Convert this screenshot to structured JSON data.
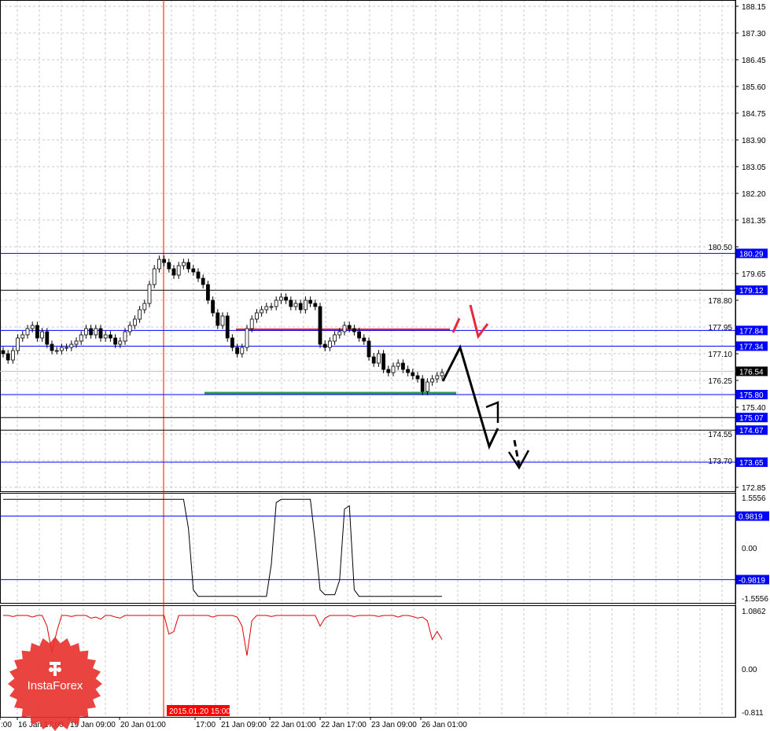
{
  "chart_data": {
    "type": "candlestick",
    "price_axis": {
      "ylim": [
        172.85,
        188.15
      ],
      "ticks": [
        "188.15",
        "187.30",
        "186.45",
        "185.60",
        "184.75",
        "183.90",
        "183.05",
        "182.20",
        "181.35",
        "180.50",
        "179.65",
        "178.80",
        "177.95",
        "177.10",
        "176.25",
        "175.40",
        "174.55",
        "173.70",
        "172.85"
      ]
    },
    "current_price": {
      "value": "176.54",
      "color": "#000000"
    },
    "levels": [
      {
        "label": "180.29",
        "value": 180.29,
        "color": "#0000ff"
      },
      {
        "label": "179.12",
        "value": 179.12,
        "color": "#000000"
      },
      {
        "label": "177.84",
        "value": 177.84,
        "color": "#0000ff"
      },
      {
        "label": "177.34",
        "value": 177.34,
        "color": "#0000ff"
      },
      {
        "label": "175.80",
        "value": 175.8,
        "color": "#0000ff"
      },
      {
        "label": "175.07",
        "value": 175.07,
        "color": "#000000"
      },
      {
        "label": "174.67",
        "value": 174.67,
        "color": "#000000"
      },
      {
        "label": "173.65",
        "value": 173.65,
        "color": "#0000ff"
      }
    ],
    "resistance_zone": {
      "value": 177.84,
      "color": "#e8283c"
    },
    "support_zone": {
      "value": 175.8,
      "color": "#2e9e4e"
    },
    "closes": [
      177.1,
      176.9,
      177.2,
      177.6,
      177.7,
      177.9,
      178.0,
      177.6,
      177.8,
      177.4,
      177.2,
      177.2,
      177.3,
      177.3,
      177.4,
      177.5,
      177.7,
      177.9,
      177.7,
      177.9,
      177.6,
      177.7,
      177.6,
      177.4,
      177.5,
      177.8,
      178.0,
      178.2,
      178.5,
      178.7,
      179.3,
      179.8,
      180.1,
      180.0,
      179.8,
      179.6,
      179.9,
      180.0,
      179.8,
      179.7,
      179.5,
      179.3,
      178.8,
      178.4,
      178.0,
      178.3,
      177.6,
      177.3,
      177.1,
      177.3,
      177.9,
      178.2,
      178.4,
      178.5,
      178.6,
      178.6,
      178.8,
      178.9,
      178.8,
      178.6,
      178.7,
      178.5,
      178.8,
      178.7,
      178.6,
      177.4,
      177.3,
      177.5,
      177.7,
      177.8,
      178.0,
      177.9,
      177.8,
      177.6,
      177.5,
      177.0,
      176.8,
      177.1,
      176.6,
      176.5,
      176.7,
      176.8,
      176.6,
      176.5,
      176.4,
      176.3,
      175.9,
      176.2,
      176.3,
      176.4,
      176.5
    ],
    "indicator1": {
      "ylim": [
        -1.5556,
        1.5556
      ],
      "ticks": [
        "1.5556",
        "0.00",
        "-1.5556"
      ],
      "levels": [
        {
          "label": "0.9819",
          "value": 0.9819
        },
        {
          "label": "-0.9819",
          "value": -0.9819
        }
      ],
      "values": [
        1.5,
        1.5,
        1.5,
        1.5,
        1.5,
        1.5,
        1.5,
        1.5,
        1.5,
        1.5,
        1.5,
        1.5,
        1.5,
        1.5,
        1.5,
        1.5,
        1.5,
        1.5,
        1.5,
        1.5,
        1.5,
        1.5,
        1.5,
        1.5,
        1.5,
        1.5,
        1.5,
        1.5,
        1.5,
        1.5,
        1.5,
        1.5,
        1.5,
        1.5,
        1.5,
        1.5,
        1.5,
        1.5,
        0.6,
        -1.3,
        -1.5,
        -1.5,
        -1.5,
        -1.5,
        -1.5,
        -1.5,
        -1.5,
        -1.5,
        -1.5,
        -1.5,
        -1.5,
        -1.5,
        -1.5,
        -1.5,
        -1.5,
        -0.5,
        1.4,
        1.5,
        1.5,
        1.5,
        1.5,
        1.5,
        1.5,
        1.5,
        0.2,
        -1.3,
        -1.45,
        -1.45,
        -1.45,
        -1.0,
        1.2,
        1.3,
        -1.3,
        -1.5,
        -1.5,
        -1.5,
        -1.5,
        -1.5,
        -1.5,
        -1.5,
        -1.5,
        -1.5,
        -1.5,
        -1.5,
        -1.5,
        -1.5,
        -1.5,
        -1.5,
        -1.5,
        -1.5,
        -1.5
      ]
    },
    "indicator2": {
      "ylim": [
        -0.811,
        1.0862
      ],
      "ticks": [
        "1.0862",
        "0.00",
        "-0.811"
      ],
      "color": "#e00000",
      "values": [
        1.0,
        1.0,
        0.98,
        1.0,
        1.0,
        1.0,
        0.97,
        1.0,
        1.0,
        0.8,
        0.3,
        0.7,
        1.0,
        1.0,
        0.98,
        1.0,
        1.0,
        1.0,
        0.95,
        0.97,
        0.93,
        1.0,
        1.0,
        0.97,
        0.95,
        1.0,
        1.0,
        1.0,
        1.0,
        1.0,
        1.0,
        1.0,
        1.0,
        1.0,
        0.65,
        0.7,
        1.0,
        1.0,
        1.0,
        1.0,
        1.0,
        1.0,
        1.0,
        0.97,
        1.0,
        1.0,
        1.0,
        1.0,
        0.97,
        0.8,
        0.25,
        0.9,
        1.0,
        1.0,
        1.0,
        0.98,
        1.0,
        1.0,
        1.0,
        1.0,
        1.0,
        1.0,
        1.0,
        1.0,
        1.0,
        0.8,
        0.95,
        1.0,
        1.0,
        1.0,
        1.0,
        1.0,
        0.98,
        1.0,
        1.0,
        1.0,
        1.0,
        0.98,
        1.0,
        1.0,
        1.0,
        0.97,
        1.0,
        1.0,
        0.98,
        0.95,
        0.97,
        0.9,
        0.55,
        0.7,
        0.55
      ]
    },
    "time_axis": {
      "ticks": [
        ":00",
        "16 Jan 17:00",
        "19 Jan 09:00",
        "20 Jan 01:00",
        "17:00",
        "21 Jan 09:00",
        "22 Jan 01:00",
        "22 Jan 17:00",
        "23 Jan 09:00",
        "26 Jan 01:00"
      ],
      "cursor_label": "2015.01.20 15:00",
      "cursor_color": "#ff0000"
    }
  },
  "logo": {
    "text": "InstaForex",
    "color": "#e8302c"
  }
}
